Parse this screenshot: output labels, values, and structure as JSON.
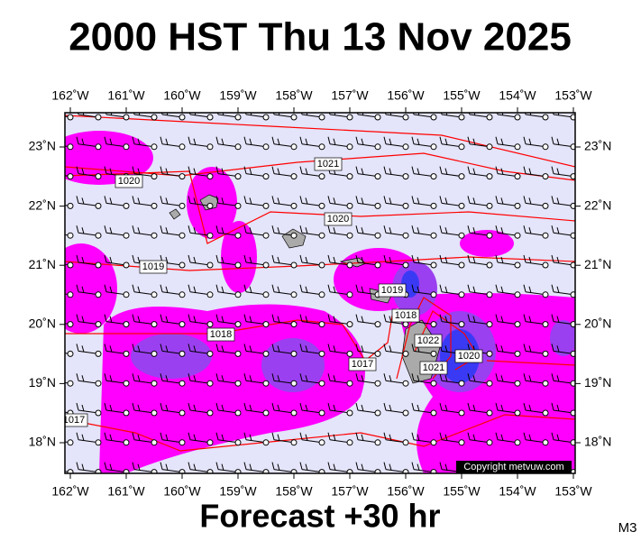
{
  "header": {
    "title": "2000 HST Thu 13 Nov 2025"
  },
  "map": {
    "lon_labels": [
      "162˚W",
      "161˚W",
      "160˚W",
      "159˚W",
      "158˚W",
      "157˚W",
      "156˚W",
      "155˚W",
      "154˚W",
      "153˚W"
    ],
    "lat_labels": [
      "23˚N",
      "22˚N",
      "21˚N",
      "20˚N",
      "19˚N",
      "18˚N"
    ],
    "isobar_labels": [
      "1021",
      "1020",
      "1020",
      "1019",
      "1019",
      "1018",
      "1018",
      "1022",
      "1021",
      "1020",
      "1017",
      "1017"
    ],
    "copyright": "Copyright metvuw.com"
  },
  "footer": {
    "subtitle": "Forecast +30 hr",
    "model": "M3"
  }
}
